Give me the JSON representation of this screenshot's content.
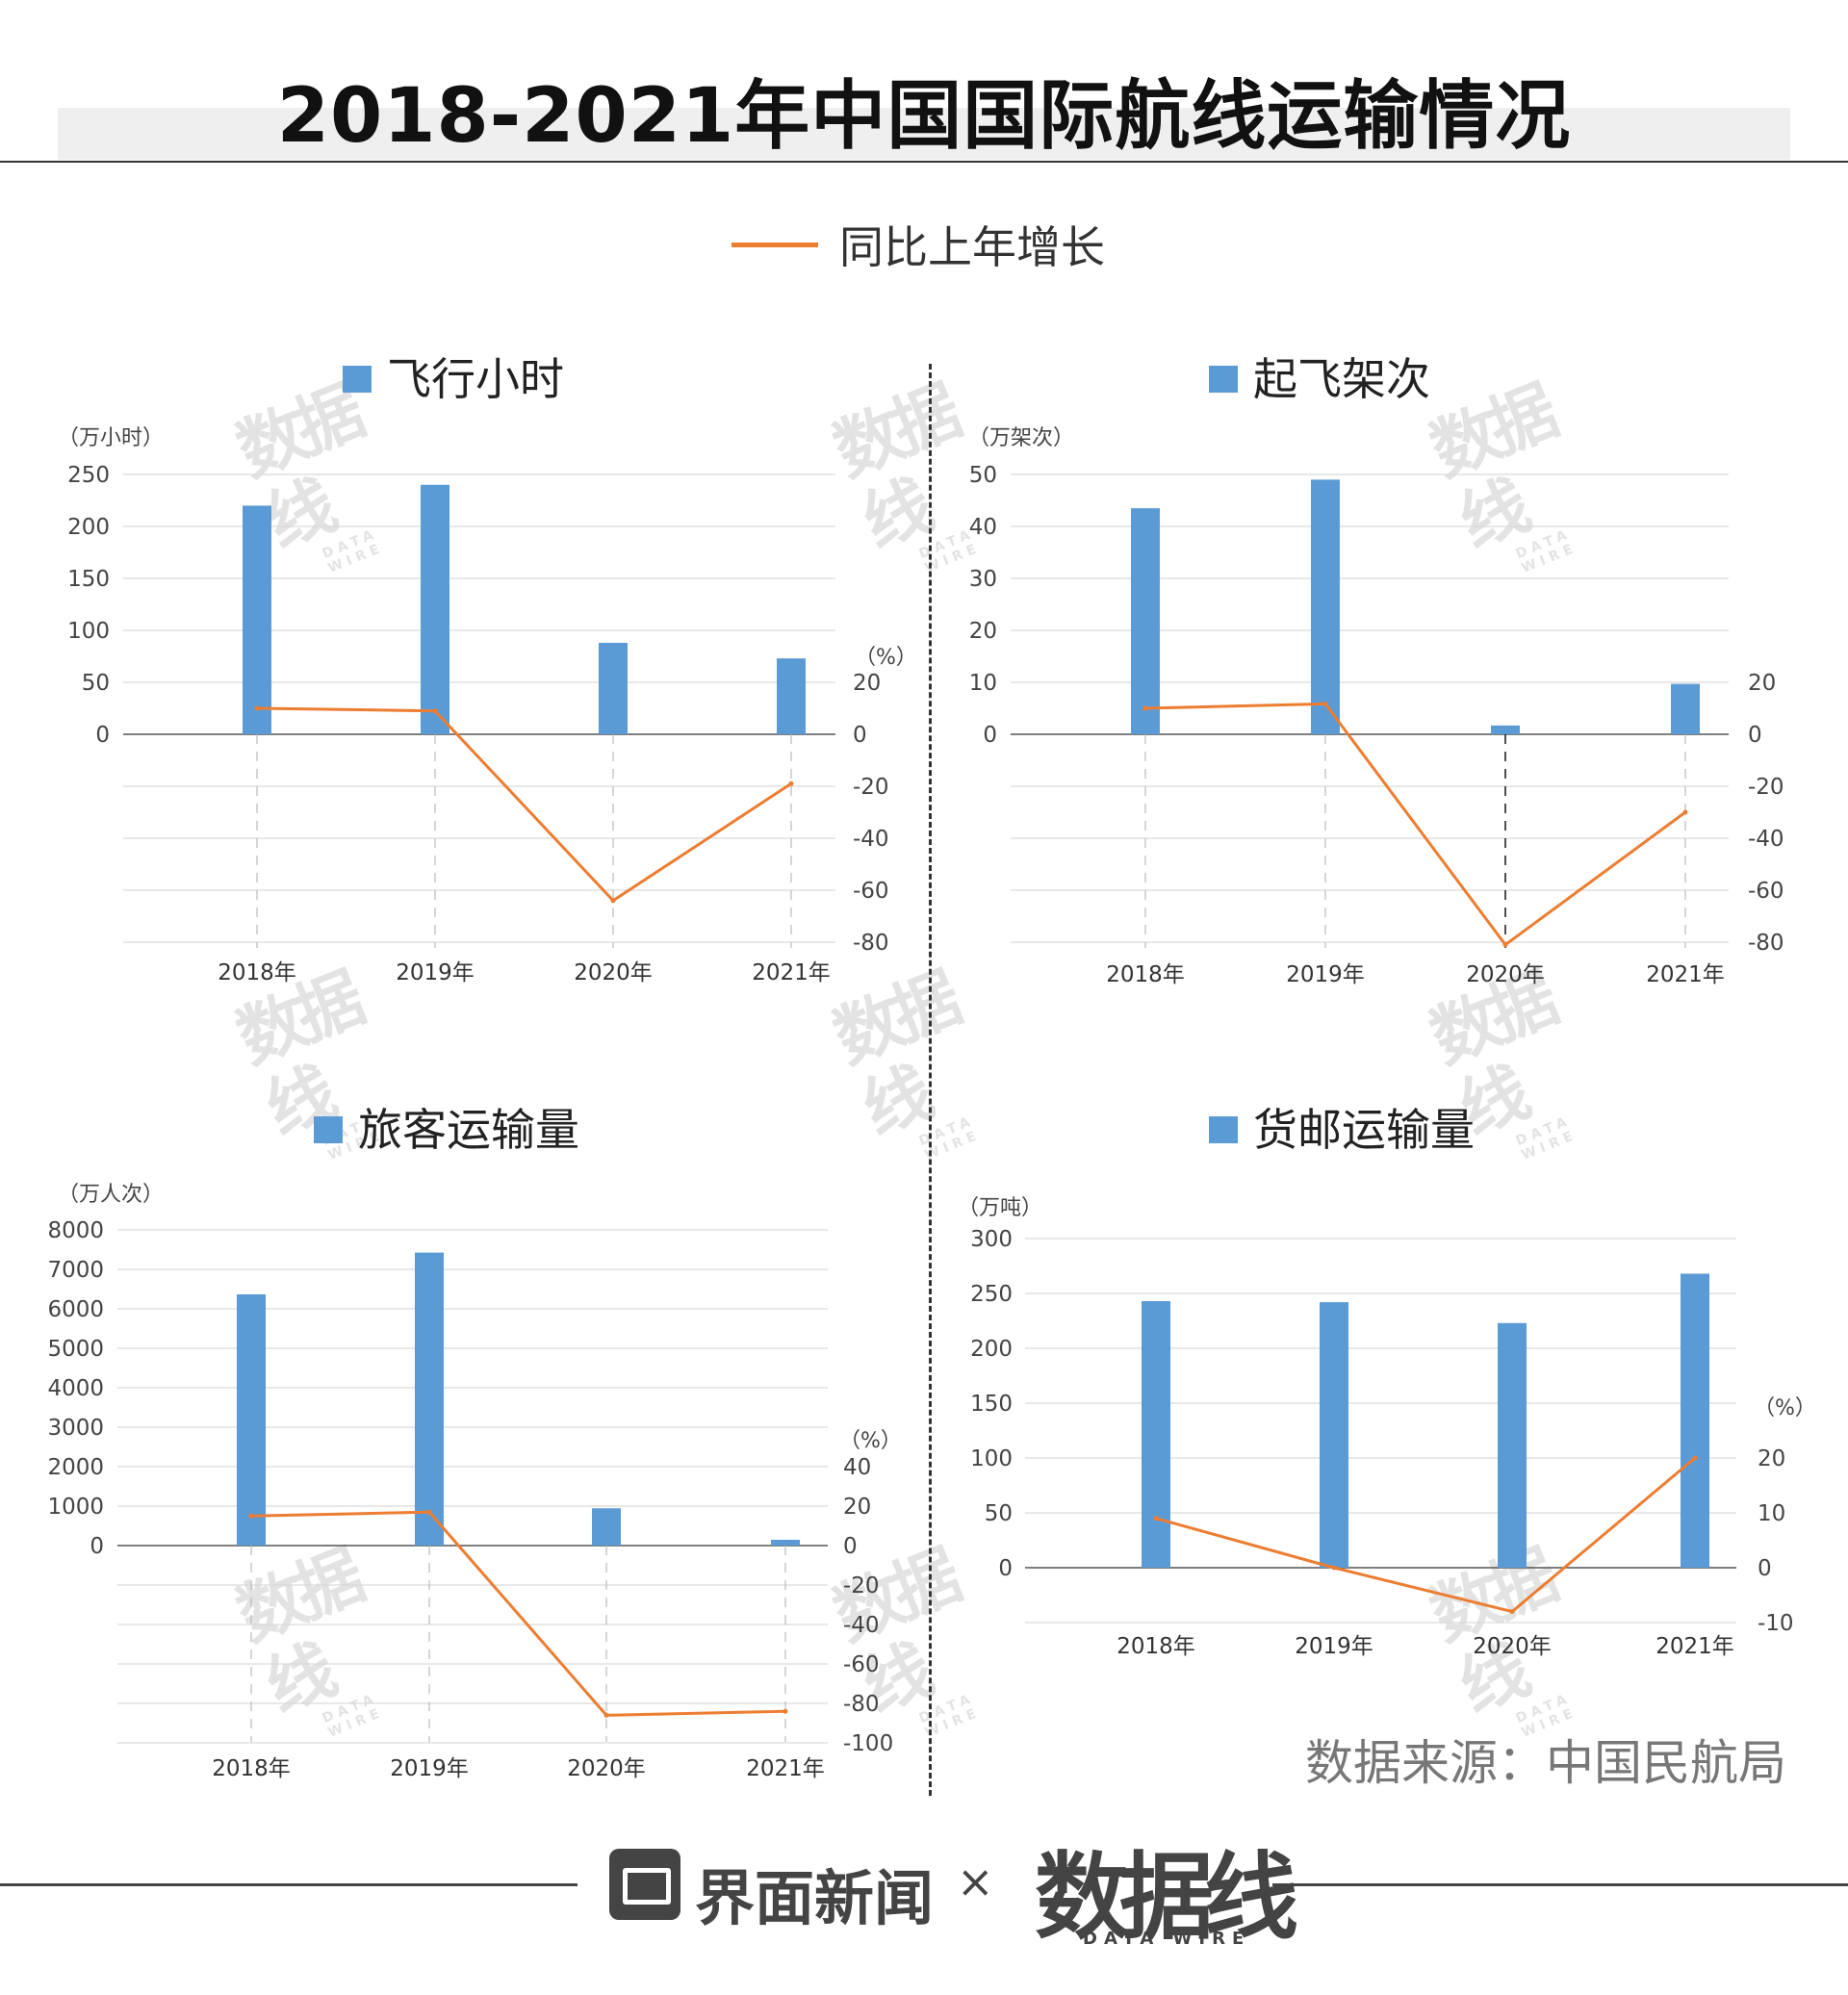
{
  "title": "2018-2021年中国国际航线运输情况",
  "legend": {
    "line_label": "同比上年增长",
    "line_color": "#ed7d31",
    "bar_color": "#5b9bd5"
  },
  "source": "数据来源：中国民航局",
  "footer": {
    "brand1": "界面新闻",
    "separator": "×",
    "brand2": "数据线",
    "brand2_sub": "DATA WIRE"
  },
  "watermark": {
    "text": "数据线",
    "sub": "DATA WIRE"
  },
  "chart_data": [
    {
      "type": "bar",
      "title": "飞行小时",
      "categories": [
        "2018年",
        "2019年",
        "2020年",
        "2021年"
      ],
      "series": [
        {
          "name": "飞行小时",
          "values": [
            220,
            240,
            88,
            73
          ]
        },
        {
          "name": "同比上年增长",
          "values": [
            10,
            9,
            -64,
            -19
          ]
        }
      ],
      "ylabel": "（万小时）",
      "y2label": "（%）",
      "ylim": [
        0,
        250
      ],
      "yticks": [
        0,
        50,
        100,
        150,
        200,
        250
      ],
      "y2lim": [
        -80,
        20
      ],
      "y2ticks": [
        20,
        0,
        -20,
        -40,
        -60,
        -80
      ]
    },
    {
      "type": "bar",
      "title": "起飞架次",
      "categories": [
        "2018年",
        "2019年",
        "2020年",
        "2021年"
      ],
      "series": [
        {
          "name": "起飞架次",
          "values": [
            43.5,
            49,
            1.7,
            9.7
          ]
        },
        {
          "name": "同比上年增长",
          "values": [
            10,
            11.7,
            -81,
            -30
          ]
        }
      ],
      "ylabel": "（万架次）",
      "y2label": "",
      "ylim": [
        0,
        50
      ],
      "yticks": [
        0,
        10,
        20,
        30,
        40,
        50
      ],
      "y2lim": [
        -80,
        20
      ],
      "y2ticks": [
        20,
        0,
        -20,
        -40,
        -60,
        -80
      ]
    },
    {
      "type": "bar",
      "title": "旅客运输量",
      "categories": [
        "2018年",
        "2019年",
        "2020年",
        "2021年"
      ],
      "series": [
        {
          "name": "旅客运输量",
          "values": [
            6367,
            7425,
            945,
            147
          ]
        },
        {
          "name": "同比上年增长",
          "values": [
            15,
            17,
            -86,
            -84
          ]
        }
      ],
      "ylabel": "（万人次）",
      "y2label": "（%）",
      "ylim": [
        0,
        8000
      ],
      "yticks": [
        0,
        1000,
        2000,
        3000,
        4000,
        5000,
        6000,
        7000,
        8000
      ],
      "y2lim": [
        -100,
        40
      ],
      "y2ticks": [
        40,
        20,
        0,
        -20,
        -40,
        -60,
        -80,
        -100
      ]
    },
    {
      "type": "bar",
      "title": "货邮运输量",
      "categories": [
        "2018年",
        "2019年",
        "2020年",
        "2021年"
      ],
      "series": [
        {
          "name": "货邮运输量",
          "values": [
            243,
            242,
            223,
            268
          ]
        },
        {
          "name": "同比上年增长",
          "values": [
            9,
            0,
            -8,
            20
          ]
        }
      ],
      "ylabel": "（万吨）",
      "y2label": "（%）",
      "ylim": [
        0,
        300
      ],
      "yticks": [
        0,
        50,
        100,
        150,
        200,
        250,
        300
      ],
      "y2lim": [
        -10,
        20
      ],
      "y2ticks": [
        20,
        10,
        0,
        -10
      ]
    }
  ]
}
